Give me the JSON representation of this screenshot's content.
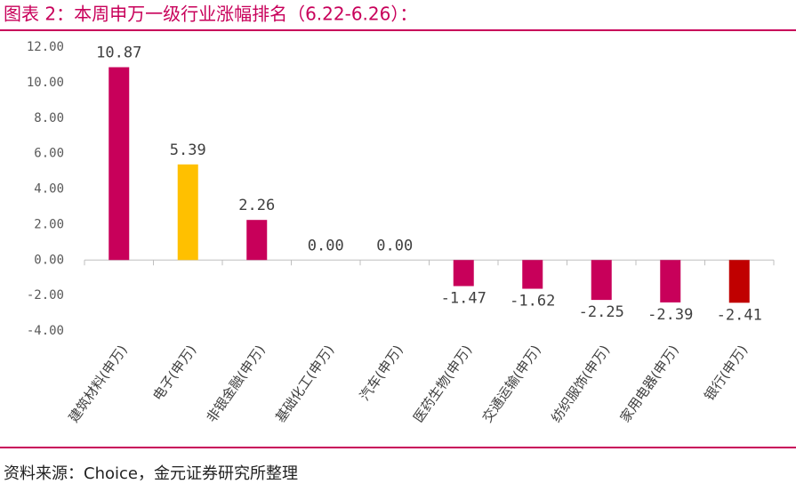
{
  "header": {
    "title": "图表 2：本周申万一级行业涨幅排名（6.22-6.26）："
  },
  "chart_data": {
    "type": "bar",
    "categories": [
      "建筑材料(申万)",
      "电子(申万)",
      "非银金融(申万)",
      "基础化工(申万)",
      "汽车(申万)",
      "医药生物(申万)",
      "交通运输(申万)",
      "纺织服饰(申万)",
      "家用电器(申万)",
      "银行(申万)"
    ],
    "values": [
      10.87,
      5.39,
      2.26,
      0.0,
      0.0,
      -1.47,
      -1.62,
      -2.25,
      -2.39,
      -2.41
    ],
    "value_labels": [
      "10.87",
      "5.39",
      "2.26",
      "0.00",
      "0.00",
      "-1.47",
      "-1.62",
      "-2.25",
      "-2.39",
      "-2.41"
    ],
    "colors": [
      "#c8005a",
      "#ffc000",
      "#c8005a",
      "#c8005a",
      "#c8005a",
      "#c8005a",
      "#c8005a",
      "#c8005a",
      "#c8005a",
      "#c00000"
    ],
    "ylim": [
      -4,
      12
    ],
    "yticks": [
      {
        "value": -4,
        "label": "-4.00"
      },
      {
        "value": -2,
        "label": "-2.00"
      },
      {
        "value": 0,
        "label": "0.00"
      },
      {
        "value": 2,
        "label": "2.00"
      },
      {
        "value": 4,
        "label": "4.00"
      },
      {
        "value": 6,
        "label": "6.00"
      },
      {
        "value": 8,
        "label": "8.00"
      },
      {
        "value": 10,
        "label": "10.00"
      },
      {
        "value": 12,
        "label": "12.00"
      }
    ],
    "grid": false
  },
  "footer": {
    "source": "资料来源：Choice，金元证券研究所整理"
  }
}
